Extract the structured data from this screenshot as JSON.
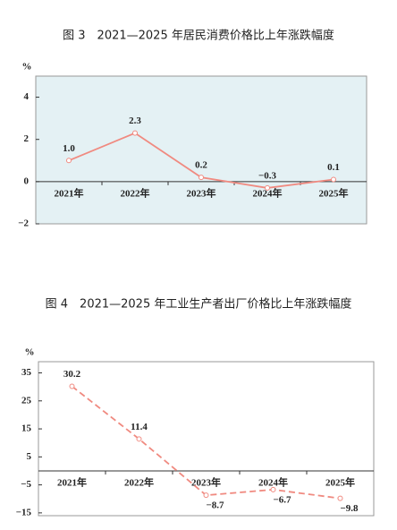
{
  "chart_data": [
    {
      "type": "line",
      "title": "图 3　2021—2025 年居民消费价格比上年涨跌幅度",
      "y_label": "%",
      "categories": [
        "2021年",
        "2022年",
        "2023年",
        "2024年",
        "2025年"
      ],
      "series": [
        {
          "color": "#f08a80",
          "values": [
            1.0,
            2.3,
            0.2,
            -0.3,
            0.1
          ],
          "value_labels": [
            "1.0",
            "2.3",
            "0.2",
            "−0.3",
            "0.1"
          ],
          "line_style": "solid"
        }
      ],
      "ylim": [
        -2,
        5
      ],
      "yticks": [
        4,
        2,
        0,
        {
          "value": -2,
          "label": "−2"
        }
      ],
      "background": "#e4f1f4"
    },
    {
      "type": "line",
      "title": "图 4　2021—2025 年工业生产者出厂价格比上年涨跌幅度",
      "y_label": "%",
      "categories": [
        "2021年",
        "2022年",
        "2023年",
        "2024年",
        "2025年"
      ],
      "series": [
        {
          "color": "#f08a80",
          "values": [
            30.2,
            11.4,
            -8.7,
            -6.7,
            -9.8
          ],
          "value_labels": [
            "30.2",
            "11.4",
            "−8.7",
            "−6.7",
            "−9.8"
          ],
          "line_style": "dashed"
        }
      ],
      "ylim": [
        -16,
        39
      ],
      "yticks": [
        35,
        25,
        15,
        5,
        {
          "value": -5,
          "label": "−5"
        },
        {
          "value": -15,
          "label": "−15"
        }
      ],
      "background": "#ffffff"
    }
  ]
}
